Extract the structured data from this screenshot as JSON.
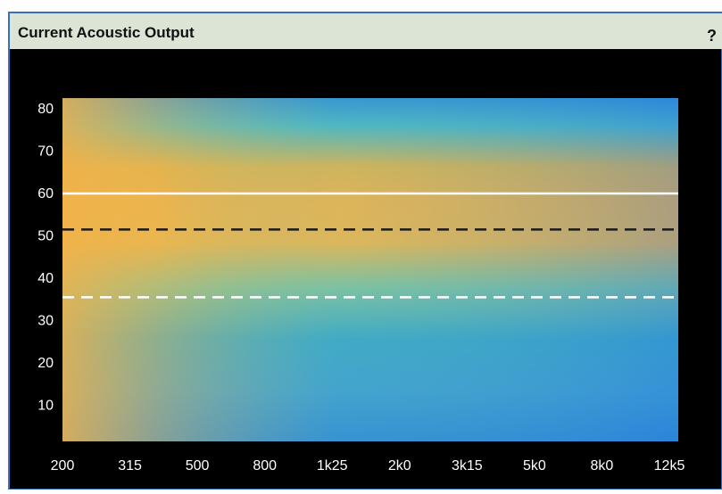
{
  "window": {
    "title": "Current Acoustic Output",
    "help": "?"
  },
  "chart_data": {
    "type": "heatmap",
    "categories": [
      "200",
      "315",
      "500",
      "800",
      "1k25",
      "2k0",
      "3k15",
      "5k0",
      "8k0",
      "12k5"
    ],
    "ylim": [
      1.5,
      82.5
    ],
    "yticks": [
      10,
      20,
      30,
      40,
      50,
      60,
      70,
      80
    ],
    "hlines": [
      {
        "value": 60,
        "color": "#ffffff",
        "dashed": false
      },
      {
        "value": 51.5,
        "color": "#1a1a1a",
        "dashed": true
      },
      {
        "value": 35.5,
        "color": "#ffffff",
        "dashed": true
      }
    ]
  }
}
